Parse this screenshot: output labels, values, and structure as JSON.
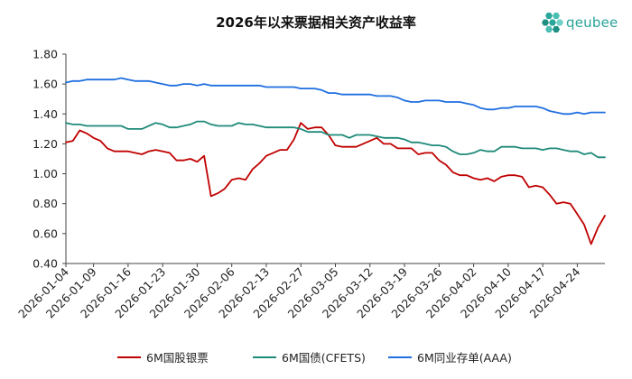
{
  "chart_data": {
    "type": "line",
    "title": "2026年以来票据相关资产收益率",
    "xlabel": "",
    "ylabel": "",
    "ylim": [
      0.4,
      1.8
    ],
    "yticks": [
      "1.80",
      "1.60",
      "1.40",
      "1.20",
      "1.00",
      "0.80",
      "0.60",
      "0.40"
    ],
    "ytick_values": [
      1.8,
      1.6,
      1.4,
      1.2,
      1.0,
      0.8,
      0.6,
      0.4
    ],
    "xtick_labels": [
      "2026-01-04",
      "2026-01-09",
      "2026-01-16",
      "2026-01-23",
      "2026-01-30",
      "2026-02-06",
      "2026-02-13",
      "2026-02-27",
      "2026-03-05",
      "2026-03-12",
      "2026-03-19",
      "2026-03-26",
      "2026-04-02",
      "2026-04-10",
      "2026-04-17",
      "2026-04-24"
    ],
    "xtick_index": [
      0,
      4,
      9,
      14,
      19,
      24,
      29,
      34,
      39,
      44,
      49,
      54,
      59,
      64,
      69,
      74
    ],
    "n_points": 79,
    "grid": false,
    "legend_position": "bottom",
    "series": [
      {
        "name": "6M国股银票",
        "color": "#c00000",
        "values": [
          1.21,
          1.22,
          1.29,
          1.27,
          1.24,
          1.22,
          1.17,
          1.15,
          1.15,
          1.15,
          1.14,
          1.13,
          1.15,
          1.16,
          1.15,
          1.14,
          1.09,
          1.09,
          1.1,
          1.08,
          1.12,
          0.85,
          0.87,
          0.9,
          0.96,
          0.97,
          0.96,
          1.03,
          1.07,
          1.12,
          1.14,
          1.16,
          1.16,
          1.23,
          1.34,
          1.3,
          1.31,
          1.31,
          1.26,
          1.19,
          1.18,
          1.18,
          1.18,
          1.2,
          1.22,
          1.24,
          1.2,
          1.2,
          1.17,
          1.17,
          1.17,
          1.13,
          1.14,
          1.14,
          1.09,
          1.06,
          1.01,
          0.99,
          0.99,
          0.97,
          0.96,
          0.97,
          0.95,
          0.98,
          0.99,
          0.99,
          0.98,
          0.91,
          0.92,
          0.91,
          0.86,
          0.8,
          0.81,
          0.8,
          0.73,
          0.66,
          0.53,
          0.64,
          0.72
        ]
      },
      {
        "name": "6M国债(CFETS)",
        "color": "#1f8a7a",
        "values": [
          1.34,
          1.33,
          1.33,
          1.32,
          1.32,
          1.32,
          1.32,
          1.32,
          1.32,
          1.3,
          1.3,
          1.3,
          1.32,
          1.34,
          1.33,
          1.31,
          1.31,
          1.32,
          1.33,
          1.35,
          1.35,
          1.33,
          1.32,
          1.32,
          1.32,
          1.34,
          1.33,
          1.33,
          1.32,
          1.31,
          1.31,
          1.31,
          1.31,
          1.31,
          1.3,
          1.28,
          1.28,
          1.28,
          1.26,
          1.26,
          1.26,
          1.24,
          1.26,
          1.26,
          1.26,
          1.25,
          1.24,
          1.24,
          1.24,
          1.23,
          1.21,
          1.21,
          1.2,
          1.19,
          1.19,
          1.18,
          1.15,
          1.13,
          1.13,
          1.14,
          1.16,
          1.15,
          1.15,
          1.18,
          1.18,
          1.18,
          1.17,
          1.17,
          1.17,
          1.16,
          1.17,
          1.17,
          1.16,
          1.15,
          1.15,
          1.13,
          1.14,
          1.11,
          1.11
        ]
      },
      {
        "name": "6M同业存单(AAA)",
        "color": "#1f6fe0",
        "values": [
          1.61,
          1.62,
          1.62,
          1.63,
          1.63,
          1.63,
          1.63,
          1.63,
          1.64,
          1.63,
          1.62,
          1.62,
          1.62,
          1.61,
          1.6,
          1.59,
          1.59,
          1.6,
          1.6,
          1.59,
          1.6,
          1.59,
          1.59,
          1.59,
          1.59,
          1.59,
          1.59,
          1.59,
          1.59,
          1.58,
          1.58,
          1.58,
          1.58,
          1.58,
          1.57,
          1.57,
          1.57,
          1.56,
          1.54,
          1.54,
          1.53,
          1.53,
          1.53,
          1.53,
          1.53,
          1.52,
          1.52,
          1.52,
          1.51,
          1.49,
          1.48,
          1.48,
          1.49,
          1.49,
          1.49,
          1.48,
          1.48,
          1.48,
          1.47,
          1.46,
          1.44,
          1.43,
          1.43,
          1.44,
          1.44,
          1.45,
          1.45,
          1.45,
          1.45,
          1.44,
          1.42,
          1.41,
          1.4,
          1.4,
          1.41,
          1.4,
          1.41,
          1.41,
          1.41
        ]
      }
    ]
  },
  "logo": {
    "text": "qeubee"
  }
}
